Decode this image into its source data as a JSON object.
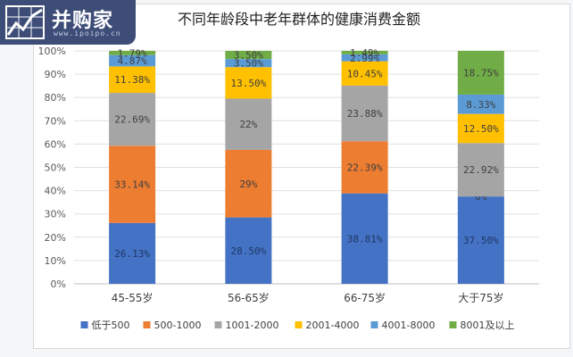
{
  "brand": {
    "name": "并购家",
    "url": "www.ipoipo.cn"
  },
  "chart_data": {
    "type": "bar",
    "stacked": true,
    "title": "不同年龄段中老年群体的健康消费金额",
    "categories": [
      "45-55岁",
      "56-65岁",
      "66-75岁",
      "大于75岁"
    ],
    "ylim": [
      0,
      100
    ],
    "yticks": [
      "0%",
      "10%",
      "20%",
      "30%",
      "40%",
      "50%",
      "60%",
      "70%",
      "80%",
      "90%",
      "100%"
    ],
    "grid": true,
    "legend_position": "bottom",
    "series": [
      {
        "name": "低于500",
        "color": "#4472c4",
        "values": [
          26.13,
          28.5,
          38.81,
          37.5
        ],
        "labels": [
          "26.13%",
          "28.50%",
          "38.81%",
          "37.50%"
        ]
      },
      {
        "name": "500-1000",
        "color": "#ed7d31",
        "values": [
          33.14,
          29,
          22.39,
          0
        ],
        "labels": [
          "33.14%",
          "29%",
          "22.39%",
          "0%"
        ]
      },
      {
        "name": "1001-2000",
        "color": "#a5a5a5",
        "values": [
          22.69,
          22,
          23.88,
          22.92
        ],
        "labels": [
          "22.69%",
          "22%",
          "23.88%",
          "22.92%"
        ]
      },
      {
        "name": "2001-4000",
        "color": "#ffc000",
        "values": [
          11.38,
          13.5,
          10.45,
          12.5
        ],
        "labels": [
          "11.38%",
          "13.50%",
          "10.45%",
          "12.50%"
        ]
      },
      {
        "name": "4001-8000",
        "color": "#5b9bd5",
        "values": [
          4.87,
          3.5,
          2.99,
          8.33
        ],
        "labels": [
          "4.87%",
          "3.50%",
          "2.99%",
          "8.33%"
        ]
      },
      {
        "name": "8001及以上",
        "color": "#70ad47",
        "values": [
          1.79,
          3.5,
          1.49,
          18.75
        ],
        "labels": [
          "1.79%",
          "3.50%",
          "1.49%",
          "18.75%"
        ]
      }
    ]
  }
}
